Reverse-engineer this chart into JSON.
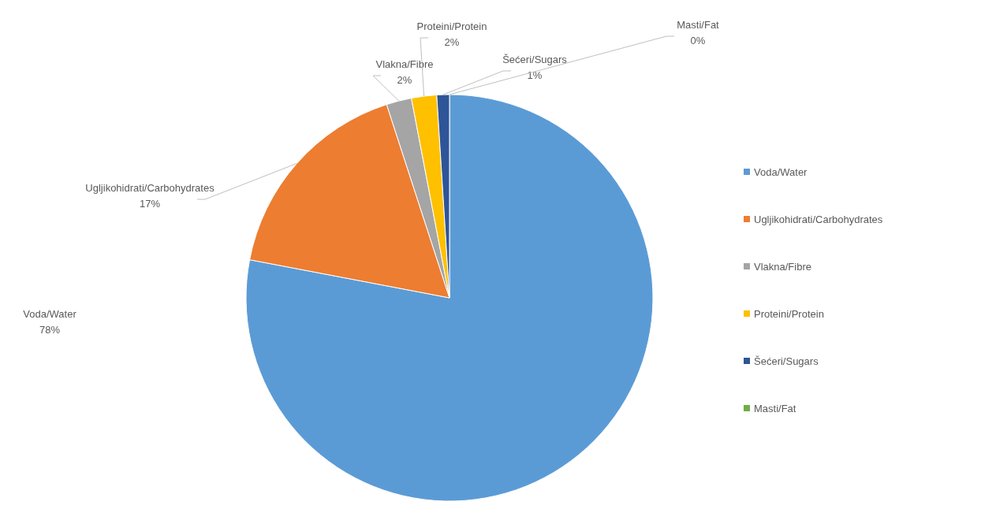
{
  "chart_data": {
    "type": "pie",
    "categories": [
      "Voda/Water",
      "Ugljikohidrati/Carbohydrates",
      "Vlakna/Fibre",
      "Proteini/Protein",
      "Šećeri/Sugars",
      "Masti/Fat"
    ],
    "values": [
      78,
      17,
      2,
      2,
      1,
      0
    ],
    "value_labels": [
      "78%",
      "17%",
      "2%",
      "2%",
      "1%",
      "0%"
    ],
    "colors": [
      "#5b9bd5",
      "#ed7d31",
      "#a5a5a5",
      "#ffc000",
      "#2e5597",
      "#70ad47"
    ],
    "legend": "right"
  }
}
